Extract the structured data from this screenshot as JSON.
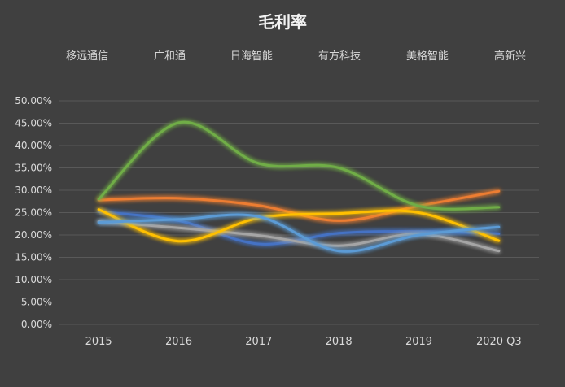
{
  "chart_data": {
    "type": "line",
    "title": "毛利率",
    "xlabel": "",
    "ylabel": "",
    "categories": [
      "2015",
      "2016",
      "2017",
      "2018",
      "2019",
      "2020 Q3"
    ],
    "ylim": [
      0,
      50
    ],
    "ytick_values": [
      0,
      5,
      10,
      15,
      20,
      25,
      30,
      35,
      40,
      45,
      50
    ],
    "ytick_labels": [
      "0.00%",
      "5.00%",
      "10.00%",
      "15.00%",
      "20.00%",
      "25.00%",
      "30.00%",
      "35.00%",
      "40.00%",
      "45.00%",
      "50.00%"
    ],
    "grid": true,
    "legend_position": "top",
    "series": [
      {
        "name": "移远通信",
        "color": "#4472C4",
        "values": [
          25.2,
          23.2,
          18.0,
          20.4,
          20.8,
          20.3
        ]
      },
      {
        "name": "广和通",
        "color": "#ED7D31",
        "values": [
          27.8,
          28.2,
          26.6,
          23.2,
          26.5,
          29.8
        ]
      },
      {
        "name": "日海智能",
        "color": "#A5A5A5",
        "values": [
          23.0,
          21.6,
          19.9,
          17.6,
          20.2,
          16.4
        ]
      },
      {
        "name": "有方科技",
        "color": "#FFC000",
        "values": [
          25.7,
          18.6,
          23.8,
          24.8,
          25.0,
          18.7
        ]
      },
      {
        "name": "美格智能",
        "color": "#5B9BD5",
        "values": [
          22.8,
          23.5,
          24.1,
          16.4,
          20.0,
          21.8
        ]
      },
      {
        "name": "高新兴",
        "color": "#70AD47",
        "values": [
          28.0,
          45.1,
          36.0,
          35.0,
          26.5,
          26.2
        ]
      }
    ]
  },
  "colors": {
    "background": "#404040",
    "text": "#D9D9D9",
    "title": "#F2F2F2",
    "grid": "#595959"
  }
}
